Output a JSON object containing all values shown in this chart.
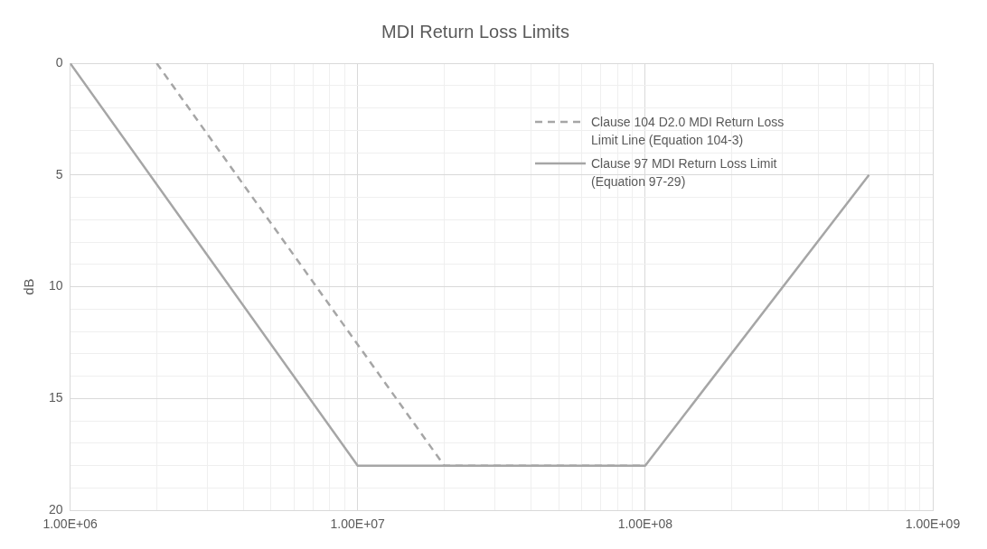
{
  "chart_data": {
    "type": "line",
    "title": "MDI Return Loss Limits",
    "ylabel": "dB",
    "series": [
      {
        "name": "Clause 104 D2.0 MDI Return Loss Limit Line (Equation 104-3)",
        "color": "#a6a6a6",
        "line_style": "dashed",
        "x": [
          2000000,
          20000000,
          100000000
        ],
        "values": [
          0,
          18,
          18
        ]
      },
      {
        "name": "Clause 97 MDI Return Loss Limit (Equation 97-29)",
        "color": "#a6a6a6",
        "line_style": "solid",
        "x": [
          1000000,
          10000000,
          100000000,
          600000000
        ],
        "values": [
          0,
          18,
          18,
          5
        ]
      }
    ],
    "log": "x",
    "xlim": [
      1000000,
      1000000000
    ],
    "xticks": [
      {
        "value": 1000000,
        "label": "1.00E+06"
      },
      {
        "value": 10000000,
        "label": "1.00E+07"
      },
      {
        "value": 100000000,
        "label": "1.00E+08"
      },
      {
        "value": 1000000000,
        "label": "1.00E+09"
      }
    ],
    "ylim": [
      20,
      0
    ],
    "yticks": [
      0,
      5,
      10,
      15,
      20
    ],
    "grid": true,
    "legend": "top right",
    "marker": "none"
  }
}
